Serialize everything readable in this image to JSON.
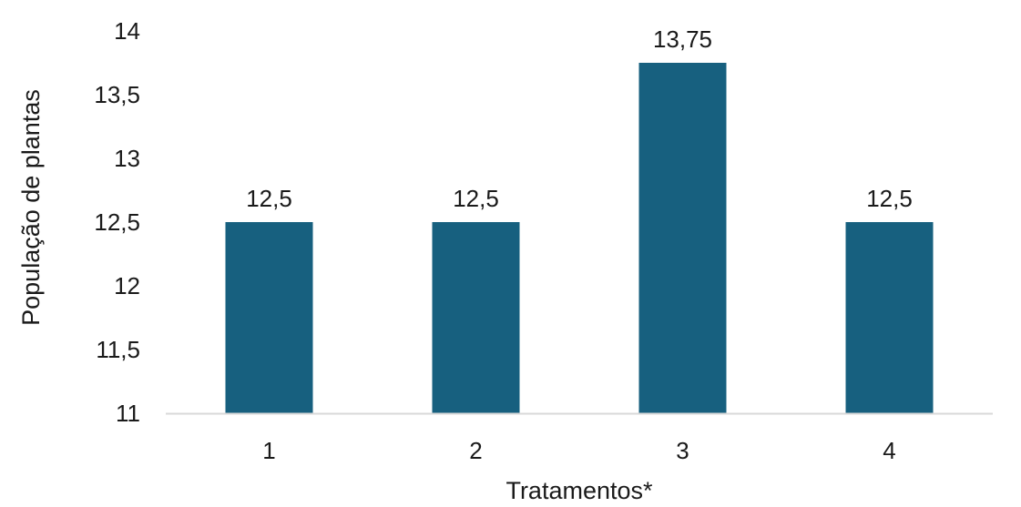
{
  "chart_data": {
    "type": "bar",
    "categories": [
      "1",
      "2",
      "3",
      "4"
    ],
    "values": [
      12.5,
      12.5,
      13.75,
      12.5
    ],
    "data_labels": [
      "12,5",
      "12,5",
      "13,75",
      "12,5"
    ],
    "title": "",
    "xlabel": "Tratamentos*",
    "ylabel": "População de plantas",
    "ylim": [
      11,
      14
    ],
    "yticks": [
      11,
      11.5,
      12,
      12.5,
      13,
      13.5,
      14
    ],
    "ytick_labels": [
      "11",
      "11,5",
      "12",
      "12,5",
      "13",
      "13,5",
      "14"
    ],
    "grid": false,
    "legend": "none",
    "colors": {
      "bar": "#17607f",
      "axis_line": "#d9d9d9",
      "text": "#1a1a1a"
    }
  }
}
